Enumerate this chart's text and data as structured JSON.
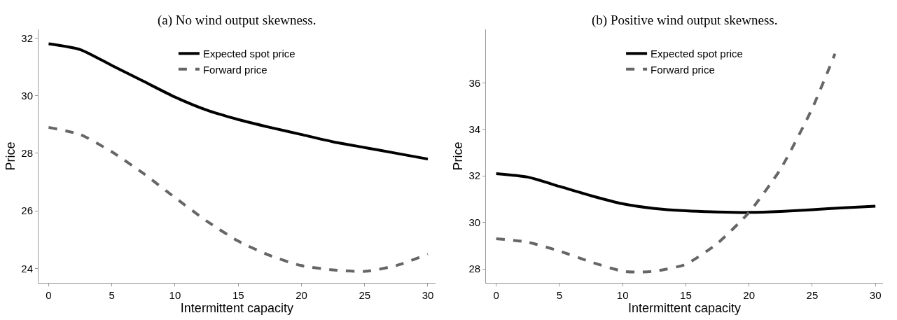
{
  "chart_data": [
    {
      "type": "line",
      "title": "(a) No wind output skewness.",
      "xlabel": "Intermittent capacity",
      "ylabel": "Price",
      "x": [
        0,
        2.5,
        5,
        7.5,
        10,
        12.5,
        15,
        17.5,
        20,
        22.5,
        25,
        27.5,
        30
      ],
      "xlim": [
        -0.8,
        30.6
      ],
      "ylim": [
        23.5,
        32.3
      ],
      "xticks": [
        0,
        5,
        10,
        15,
        20,
        25,
        30
      ],
      "yticks": [
        24,
        26,
        28,
        30,
        32
      ],
      "legend": "top",
      "marker": "none",
      "series": [
        {
          "name": "Expected spot price",
          "color": "#000000",
          "line_style": "solid",
          "values": [
            31.8,
            31.6,
            31.05,
            30.5,
            29.95,
            29.5,
            29.17,
            28.9,
            28.65,
            28.4,
            28.2,
            28.0,
            27.8
          ]
        },
        {
          "name": "Forward price",
          "color": "#666666",
          "line_style": "dashed",
          "values": [
            28.9,
            28.65,
            28.05,
            27.3,
            26.46,
            25.65,
            24.95,
            24.45,
            24.1,
            23.95,
            23.9,
            24.1,
            24.5
          ]
        }
      ]
    },
    {
      "type": "line",
      "title": "(b) Positive wind output skewness.",
      "xlabel": "Intermittent capacity",
      "ylabel": "Price",
      "xlim": [
        -0.8,
        30.6
      ],
      "ylim": [
        27.4,
        38.3
      ],
      "xticks": [
        0,
        5,
        10,
        15,
        20,
        25,
        30
      ],
      "yticks": [
        28,
        30,
        32,
        34,
        36
      ],
      "legend": "top",
      "marker": "none",
      "series": [
        {
          "name": "Expected spot price",
          "color": "#000000",
          "line_style": "solid",
          "x": [
            0,
            2.5,
            5,
            7.5,
            10,
            12.5,
            15,
            17.5,
            20,
            22.5,
            25,
            27.5,
            30
          ],
          "values": [
            32.1,
            31.95,
            31.55,
            31.15,
            30.8,
            30.6,
            30.5,
            30.45,
            30.43,
            30.47,
            30.55,
            30.63,
            30.7
          ]
        },
        {
          "name": "Forward price",
          "color": "#666666",
          "line_style": "dashed",
          "x": [
            0,
            2.5,
            5,
            7.5,
            10,
            11.3,
            12.5,
            15,
            17.5,
            20,
            22.5,
            25,
            26.8
          ],
          "values": [
            29.3,
            29.15,
            28.77,
            28.3,
            27.9,
            27.86,
            27.9,
            28.2,
            29.1,
            30.43,
            32.3,
            34.9,
            37.25
          ]
        }
      ]
    }
  ]
}
